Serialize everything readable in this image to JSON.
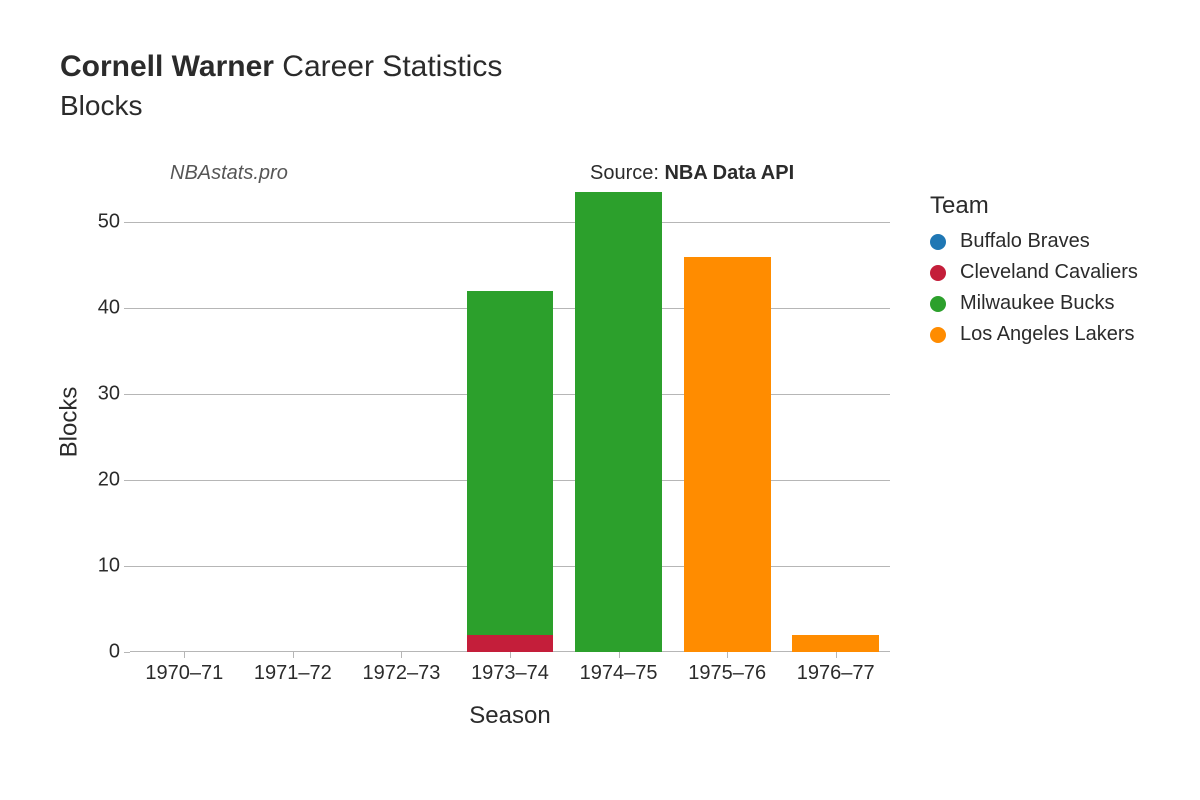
{
  "title": {
    "player": "Cornell Warner",
    "suffix": " Career Statistics",
    "subtitle": "Blocks",
    "title_fontsize": 30,
    "subtitle_fontsize": 28
  },
  "watermark": "NBAstats.pro",
  "source_prefix": "Source: ",
  "source_name": "NBA Data API",
  "chart": {
    "type": "stacked-bar",
    "xlabel": "Season",
    "ylabel": "Blocks",
    "label_fontsize": 24,
    "tick_fontsize": 20,
    "ylim": [
      0,
      53.5
    ],
    "yticks": [
      0,
      10,
      20,
      30,
      40,
      50
    ],
    "grid_color": "#b6b6b6",
    "background_color": "#ffffff",
    "bar_width": 0.8,
    "categories": [
      "1970–71",
      "1971–72",
      "1972–73",
      "1973–74",
      "1974–75",
      "1975–76",
      "1976–77"
    ],
    "series": [
      {
        "name": "Buffalo Braves",
        "color": "#1f77b4",
        "values": [
          0,
          0,
          0,
          0,
          0,
          0,
          0
        ]
      },
      {
        "name": "Cleveland Cavaliers",
        "color": "#c41e3a",
        "values": [
          0,
          0,
          0,
          2,
          0,
          0,
          0
        ]
      },
      {
        "name": "Milwaukee Bucks",
        "color": "#2ca02c",
        "values": [
          0,
          0,
          0,
          40,
          53.5,
          0,
          0
        ]
      },
      {
        "name": "Los Angeles Lakers",
        "color": "#ff8c00",
        "values": [
          0,
          0,
          0,
          0,
          0,
          46,
          2
        ]
      }
    ]
  },
  "legend": {
    "title": "Team",
    "title_fontsize": 24,
    "item_fontsize": 20
  }
}
